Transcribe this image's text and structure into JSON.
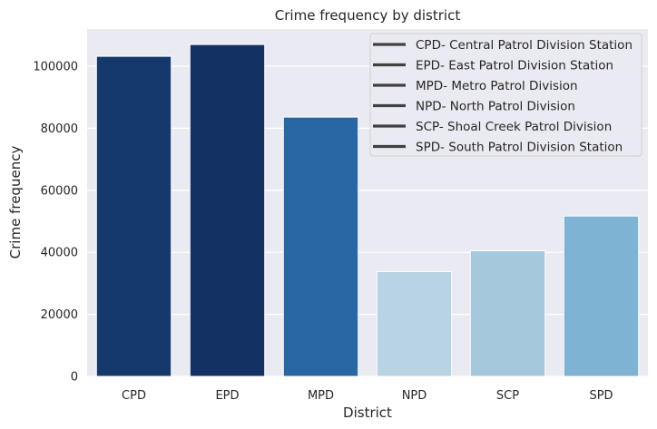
{
  "chart_data": {
    "type": "bar",
    "title": "Crime frequency by district",
    "xlabel": "District",
    "ylabel": "Crime frequency",
    "categories": [
      "CPD",
      "EPD",
      "MPD",
      "NPD",
      "SCP",
      "SPD"
    ],
    "values": [
      103200,
      107000,
      83600,
      33800,
      40500,
      51700
    ],
    "colors": [
      "#15396b",
      "#133263",
      "#2967a4",
      "#b8d3e4",
      "#a6c8dc",
      "#7eb3d3"
    ],
    "ylim": [
      0,
      112000
    ],
    "yticks": [
      0,
      20000,
      40000,
      60000,
      80000,
      100000
    ],
    "ytick_labels": [
      "0",
      "20000",
      "40000",
      "60000",
      "80000",
      "100000"
    ],
    "grid": true,
    "background_color": "#eaeaf2",
    "legend": {
      "placement": "top-right",
      "line_color": "#404040",
      "entries": [
        "CPD- Central Patrol Division Station",
        "EPD- East Patrol Division Station",
        "MPD- Metro Patrol Division",
        "NPD- North Patrol Division",
        "SCP- Shoal Creek Patrol Division",
        "SPD- South Patrol Division Station"
      ]
    }
  }
}
